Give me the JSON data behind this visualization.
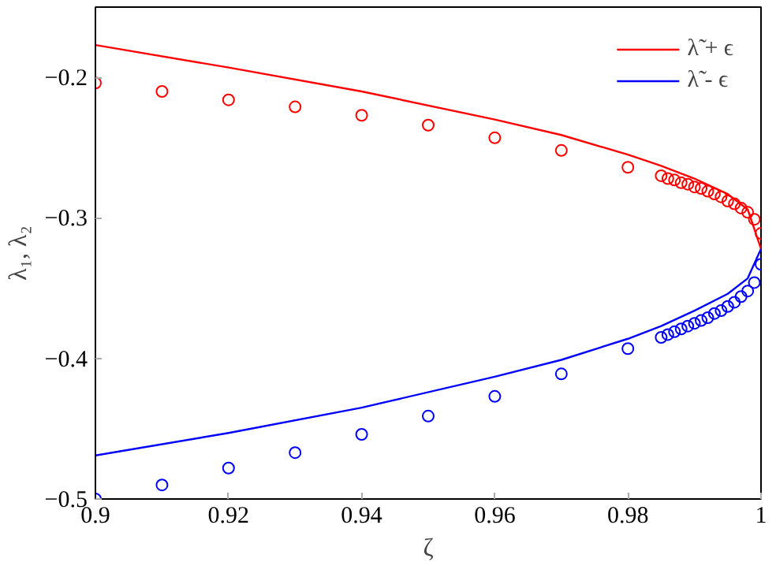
{
  "chart_data": {
    "type": "line",
    "xlabel": "ζ",
    "ylabel": "λ₁, λ₂",
    "xlim": [
      0.9,
      1
    ],
    "ylim": [
      -0.5,
      -0.15
    ],
    "xticks": [
      0.9,
      0.92,
      0.94,
      0.96,
      0.98,
      1
    ],
    "yticks": [
      {
        "value": -0.5,
        "label": "−0.5"
      },
      {
        "value": -0.4,
        "label": "−0.4"
      },
      {
        "value": -0.3,
        "label": "−0.3"
      },
      {
        "value": -0.2,
        "label": "−0.2"
      }
    ],
    "grid": false,
    "legend": "top right",
    "series": [
      {
        "name": "λ̃ + ϵ",
        "marker": "none",
        "color": "#ff0000",
        "x": [
          0.9,
          0.92,
          0.94,
          0.96,
          0.97,
          0.98,
          0.985,
          0.99,
          0.995,
          0.998,
          1
        ],
        "values": [
          -0.177,
          -0.193,
          -0.21,
          -0.23,
          -0.241,
          -0.255,
          -0.263,
          -0.272,
          -0.283,
          -0.294,
          -0.322
        ]
      },
      {
        "name": "λ̃ - ϵ",
        "marker": "none",
        "color": "#0000ff",
        "x": [
          0.9,
          0.92,
          0.94,
          0.96,
          0.97,
          0.98,
          0.985,
          0.99,
          0.995,
          0.998,
          1
        ],
        "values": [
          -0.469,
          -0.453,
          -0.435,
          -0.413,
          -0.401,
          -0.386,
          -0.377,
          -0.366,
          -0.354,
          -0.343,
          -0.322
        ]
      },
      {
        "type": "scatter",
        "marker": "circle",
        "color": "#ff0000",
        "x": [
          0.9,
          0.91,
          0.92,
          0.93,
          0.94,
          0.95,
          0.96,
          0.97,
          0.98,
          0.985,
          0.986,
          0.987,
          0.988,
          0.989,
          0.99,
          0.991,
          0.992,
          0.993,
          0.994,
          0.995,
          0.996,
          0.997,
          0.998,
          0.999,
          1
        ],
        "values": [
          -0.204,
          -0.21,
          -0.216,
          -0.221,
          -0.227,
          -0.234,
          -0.243,
          -0.252,
          -0.264,
          -0.27,
          -0.272,
          -0.273,
          -0.275,
          -0.276,
          -0.278,
          -0.279,
          -0.281,
          -0.283,
          -0.285,
          -0.288,
          -0.29,
          -0.293,
          -0.296,
          -0.301,
          -0.311
        ]
      },
      {
        "type": "scatter",
        "marker": "circle",
        "color": "#0000ff",
        "x": [
          0.9,
          0.91,
          0.92,
          0.93,
          0.94,
          0.95,
          0.96,
          0.97,
          0.98,
          0.985,
          0.986,
          0.987,
          0.988,
          0.989,
          0.99,
          0.991,
          0.992,
          0.993,
          0.994,
          0.995,
          0.996,
          0.997,
          0.998,
          0.999,
          1
        ],
        "values": [
          -0.5,
          -0.49,
          -0.478,
          -0.467,
          -0.454,
          -0.441,
          -0.427,
          -0.411,
          -0.393,
          -0.385,
          -0.383,
          -0.381,
          -0.379,
          -0.377,
          -0.375,
          -0.373,
          -0.371,
          -0.368,
          -0.366,
          -0.363,
          -0.36,
          -0.356,
          -0.352,
          -0.346,
          -0.333
        ]
      }
    ]
  }
}
